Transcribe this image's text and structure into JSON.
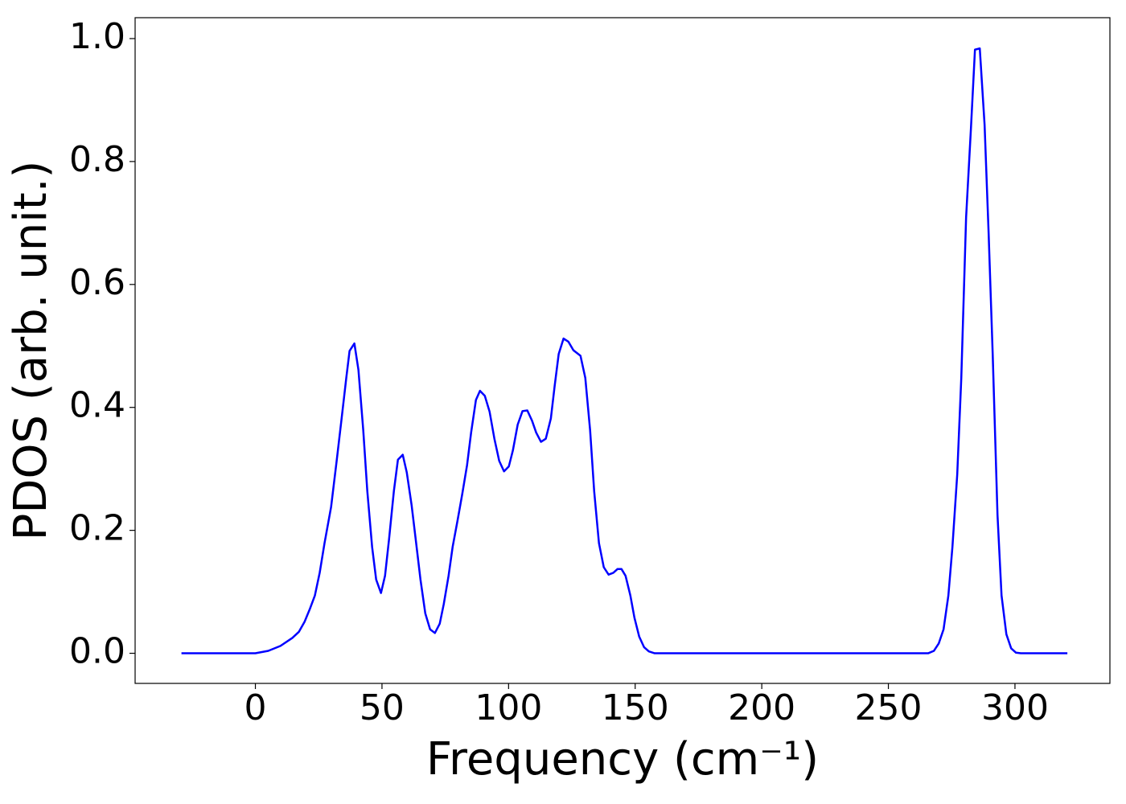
{
  "chart_data": {
    "type": "line",
    "xlabel": "Frequency (cm⁻¹)",
    "ylabel": "PDOS (arb. unit.)",
    "color": "#0000ff",
    "x": [
      -29.2,
      0,
      5.1,
      9.9,
      14.6,
      17.2,
      19.4,
      21.6,
      23.5,
      25.4,
      27.3,
      29.9,
      32.1,
      34.0,
      35.9,
      37.2,
      39.1,
      40.7,
      42.6,
      44.2,
      46.1,
      47.7,
      49.6,
      51.2,
      52.8,
      54.7,
      56.3,
      58.2,
      59.8,
      61.7,
      63.3,
      65.2,
      67.1,
      69.0,
      70.9,
      72.8,
      74.4,
      76.3,
      77.9,
      79.8,
      81.7,
      83.6,
      85.2,
      87.1,
      88.7,
      90.6,
      92.5,
      94.4,
      96.3,
      98.2,
      100.1,
      101.7,
      103.6,
      105.5,
      107.4,
      109.3,
      110.9,
      112.8,
      114.7,
      116.7,
      118.2,
      119.8,
      121.7,
      123.6,
      125.6,
      128.4,
      130.3,
      132.2,
      133.8,
      135.7,
      137.6,
      139.5,
      141.4,
      143.0,
      144.6,
      146.2,
      148.1,
      149.7,
      151.6,
      153.5,
      155.4,
      157.7,
      265.7,
      268.0,
      269.9,
      271.8,
      273.7,
      275.3,
      277.2,
      278.8,
      280.7,
      282.6,
      284.2,
      286.1,
      288.0,
      289.6,
      291.2,
      293.1,
      294.7,
      296.6,
      298.5,
      300.4,
      302.3,
      320.7
    ],
    "values": [
      0,
      0,
      0.004,
      0.012,
      0.025,
      0.035,
      0.051,
      0.073,
      0.094,
      0.131,
      0.179,
      0.238,
      0.313,
      0.38,
      0.448,
      0.492,
      0.504,
      0.461,
      0.363,
      0.264,
      0.173,
      0.12,
      0.098,
      0.126,
      0.186,
      0.264,
      0.315,
      0.323,
      0.294,
      0.241,
      0.186,
      0.12,
      0.065,
      0.039,
      0.033,
      0.048,
      0.08,
      0.126,
      0.173,
      0.215,
      0.259,
      0.306,
      0.359,
      0.412,
      0.427,
      0.419,
      0.393,
      0.349,
      0.313,
      0.296,
      0.304,
      0.33,
      0.372,
      0.394,
      0.395,
      0.378,
      0.359,
      0.344,
      0.349,
      0.382,
      0.435,
      0.487,
      0.512,
      0.507,
      0.493,
      0.484,
      0.448,
      0.363,
      0.264,
      0.179,
      0.14,
      0.128,
      0.131,
      0.137,
      0.137,
      0.126,
      0.094,
      0.058,
      0.027,
      0.01,
      0.003,
      0,
      0,
      0.004,
      0.016,
      0.039,
      0.094,
      0.173,
      0.291,
      0.448,
      0.709,
      0.853,
      0.982,
      0.984,
      0.86,
      0.683,
      0.487,
      0.225,
      0.094,
      0.031,
      0.008,
      0.001,
      0,
      0
    ],
    "xlim": [
      -47.5,
      337.5
    ],
    "ylim": [
      -0.049,
      1.034
    ],
    "xticks": [
      0,
      50,
      100,
      150,
      200,
      250,
      300
    ],
    "yticks": [
      {
        "value": 0,
        "label": "0.0"
      },
      0.2,
      0.4,
      0.6,
      0.8,
      {
        "value": 1,
        "label": "1.0"
      }
    ]
  }
}
